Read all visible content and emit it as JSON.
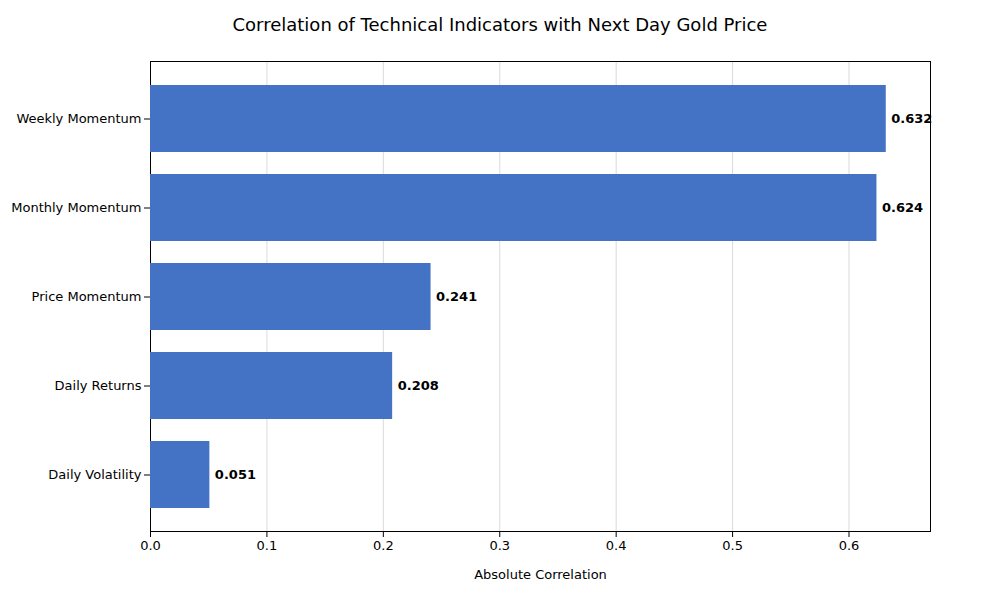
{
  "chart_data": {
    "type": "bar",
    "orientation": "horizontal",
    "title": "Correlation of Technical Indicators with Next Day Gold Price",
    "categories": [
      "Weekly Momentum",
      "Monthly Momentum",
      "Price Momentum",
      "Daily Returns",
      "Daily Volatility"
    ],
    "values": [
      0.632,
      0.624,
      0.241,
      0.208,
      0.051
    ],
    "color": "#4472c4",
    "xlabel": "Absolute Correlation",
    "xlim": [
      0,
      0.67
    ],
    "xticks": [
      {
        "value": 0,
        "label": "0.0"
      },
      0.1,
      0.2,
      0.3,
      0.4,
      0.5,
      0.6
    ],
    "grid": true,
    "data_labels": true
  }
}
